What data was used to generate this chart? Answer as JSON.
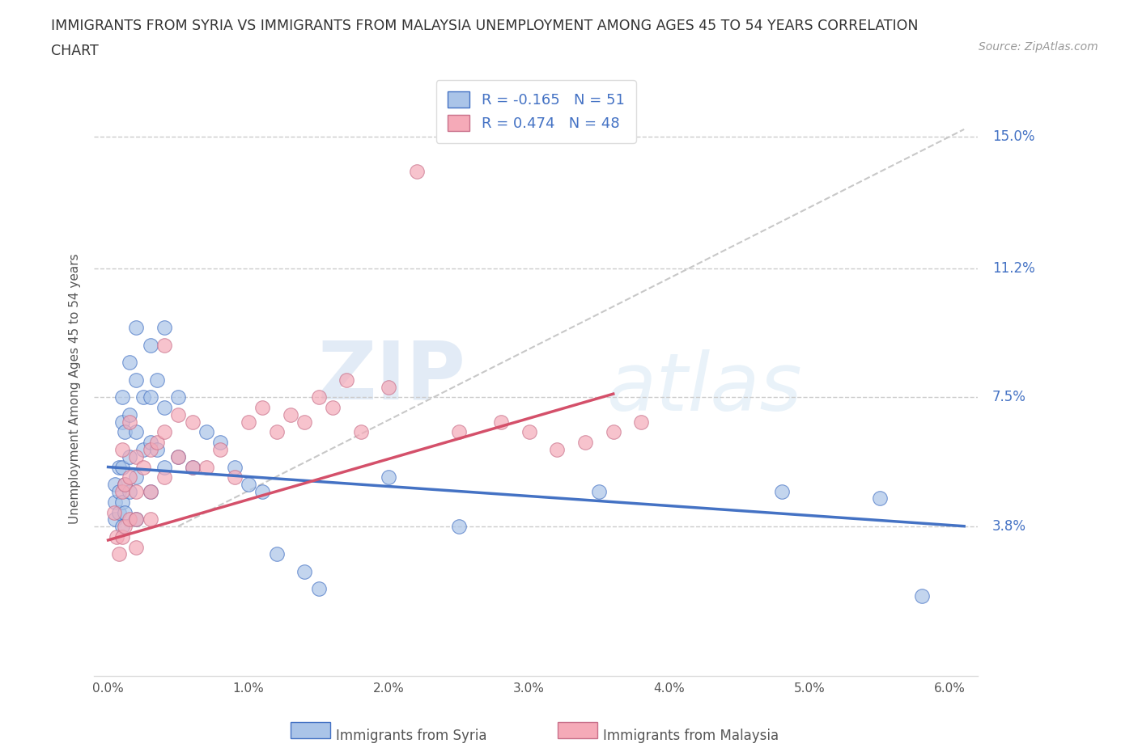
{
  "title_line1": "IMMIGRANTS FROM SYRIA VS IMMIGRANTS FROM MALAYSIA UNEMPLOYMENT AMONG AGES 45 TO 54 YEARS CORRELATION",
  "title_line2": "CHART",
  "source": "Source: ZipAtlas.com",
  "ylabel": "Unemployment Among Ages 45 to 54 years",
  "legend_label1": "Immigrants from Syria",
  "legend_label2": "Immigrants from Malaysia",
  "r1": "-0.165",
  "n1": "51",
  "r2": "0.474",
  "n2": "48",
  "xlim": [
    -0.001,
    0.062
  ],
  "ylim": [
    -0.005,
    0.16
  ],
  "yticks": [
    0.038,
    0.075,
    0.112,
    0.15
  ],
  "ytick_labels": [
    "3.8%",
    "7.5%",
    "11.2%",
    "15.0%"
  ],
  "xticks": [
    0.0,
    0.01,
    0.02,
    0.03,
    0.04,
    0.05,
    0.06
  ],
  "xtick_labels": [
    "0.0%",
    "1.0%",
    "2.0%",
    "3.0%",
    "4.0%",
    "5.0%",
    "6.0%"
  ],
  "color_syria": "#aac4e8",
  "color_malaysia": "#f5aab8",
  "color_syria_line": "#4472C4",
  "color_malaysia_line": "#D4506A",
  "color_gray_line": "#C8C8C8",
  "watermark_zip": "ZIP",
  "watermark_atlas": "atlas",
  "syria_line_x0": 0.0,
  "syria_line_y0": 0.055,
  "syria_line_x1": 0.061,
  "syria_line_y1": 0.038,
  "malaysia_line_x0": 0.0,
  "malaysia_line_y0": 0.034,
  "malaysia_line_x1": 0.036,
  "malaysia_line_y1": 0.076,
  "gray_line_x0": 0.005,
  "gray_line_y0": 0.038,
  "gray_line_x1": 0.061,
  "gray_line_y1": 0.152,
  "syria_x": [
    0.0005,
    0.0005,
    0.0005,
    0.0008,
    0.0008,
    0.0008,
    0.001,
    0.001,
    0.001,
    0.001,
    0.001,
    0.0012,
    0.0012,
    0.0012,
    0.0015,
    0.0015,
    0.0015,
    0.0015,
    0.002,
    0.002,
    0.002,
    0.002,
    0.002,
    0.0025,
    0.0025,
    0.003,
    0.003,
    0.003,
    0.003,
    0.0035,
    0.0035,
    0.004,
    0.004,
    0.004,
    0.005,
    0.005,
    0.006,
    0.007,
    0.008,
    0.009,
    0.01,
    0.011,
    0.012,
    0.014,
    0.015,
    0.02,
    0.025,
    0.035,
    0.048,
    0.055,
    0.058
  ],
  "syria_y": [
    0.05,
    0.045,
    0.04,
    0.055,
    0.048,
    0.042,
    0.075,
    0.068,
    0.055,
    0.045,
    0.038,
    0.065,
    0.05,
    0.042,
    0.085,
    0.07,
    0.058,
    0.048,
    0.095,
    0.08,
    0.065,
    0.052,
    0.04,
    0.075,
    0.06,
    0.09,
    0.075,
    0.062,
    0.048,
    0.08,
    0.06,
    0.095,
    0.072,
    0.055,
    0.075,
    0.058,
    0.055,
    0.065,
    0.062,
    0.055,
    0.05,
    0.048,
    0.03,
    0.025,
    0.02,
    0.052,
    0.038,
    0.048,
    0.048,
    0.046,
    0.018
  ],
  "malaysia_x": [
    0.0004,
    0.0006,
    0.0008,
    0.001,
    0.001,
    0.001,
    0.0012,
    0.0012,
    0.0015,
    0.0015,
    0.0015,
    0.002,
    0.002,
    0.002,
    0.002,
    0.0025,
    0.003,
    0.003,
    0.003,
    0.0035,
    0.004,
    0.004,
    0.004,
    0.005,
    0.005,
    0.006,
    0.006,
    0.007,
    0.008,
    0.009,
    0.01,
    0.011,
    0.012,
    0.013,
    0.014,
    0.015,
    0.016,
    0.017,
    0.018,
    0.02,
    0.022,
    0.025,
    0.028,
    0.03,
    0.032,
    0.034,
    0.036,
    0.038
  ],
  "malaysia_y": [
    0.042,
    0.035,
    0.03,
    0.06,
    0.048,
    0.035,
    0.05,
    0.038,
    0.068,
    0.052,
    0.04,
    0.058,
    0.048,
    0.04,
    0.032,
    0.055,
    0.06,
    0.048,
    0.04,
    0.062,
    0.09,
    0.065,
    0.052,
    0.07,
    0.058,
    0.068,
    0.055,
    0.055,
    0.06,
    0.052,
    0.068,
    0.072,
    0.065,
    0.07,
    0.068,
    0.075,
    0.072,
    0.08,
    0.065,
    0.078,
    0.14,
    0.065,
    0.068,
    0.065,
    0.06,
    0.062,
    0.065,
    0.068
  ]
}
